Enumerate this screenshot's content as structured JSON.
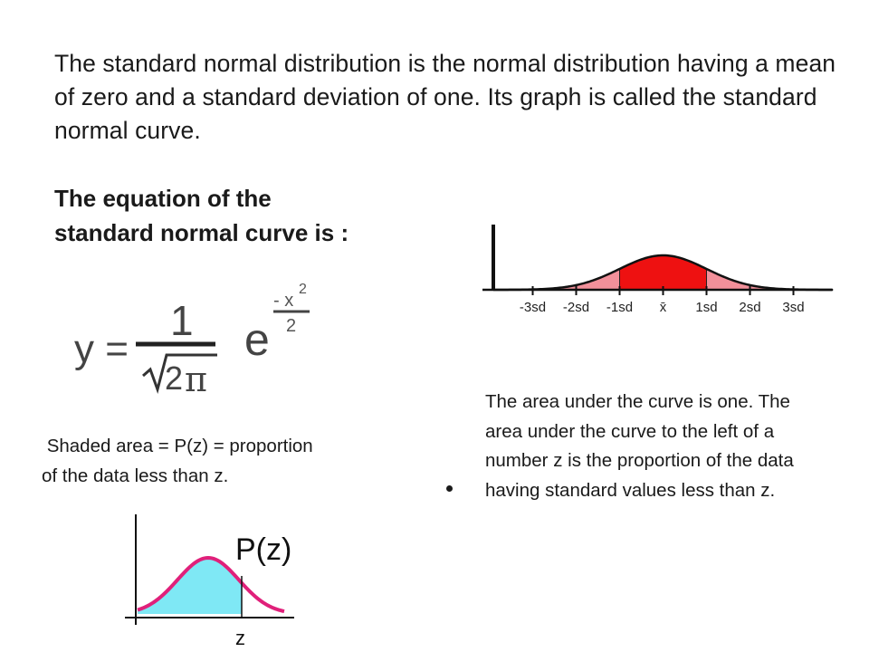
{
  "intro_text": "The standard normal distribution is the normal distribution having a mean of zero and a standard deviation of one.  Its graph is called the standard normal curve.",
  "equation_heading": {
    "line1": "The equation of the",
    "line2": "standard normal curve is :"
  },
  "formula": {
    "lhs": "y =",
    "numerator": "1",
    "denominator": "2",
    "pi_symbol": "π",
    "base": "e",
    "exp_numerator": "- x",
    "exp_power": "2",
    "exp_denominator": "2"
  },
  "curve_diagram": {
    "tick_labels": [
      "-3sd",
      "-2sd",
      "-1sd",
      "x̄",
      "1sd",
      "2sd",
      "3sd"
    ],
    "colors": {
      "center_fill": "#ee1111",
      "outer_fill": "#f2909a",
      "axis": "#111111"
    }
  },
  "shaded_caption": {
    "line1": " Shaded area = P(z) = proportion",
    "line2": "of the data less than z."
  },
  "area_caption": "The area under the curve is one.  The area under the curve to the left of a number z is the proportion of the data having standard values less than z.",
  "pz_diagram": {
    "label": "P(z)",
    "z_label": "z",
    "colors": {
      "fill": "#7fe8f5",
      "curve": "#e0207a"
    }
  }
}
